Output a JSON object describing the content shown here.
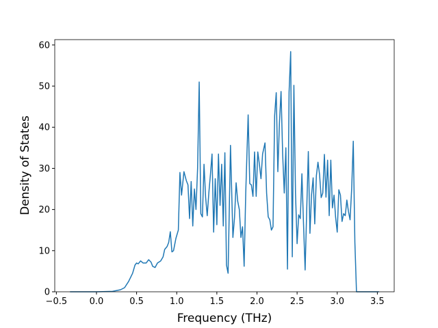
{
  "chart_data": {
    "type": "line",
    "xlabel": "Frequency (THz)",
    "ylabel": "Density of States",
    "xlim": [
      -0.52,
      3.71
    ],
    "ylim": [
      0,
      61.3
    ],
    "xticks": [
      {
        "value": -0.5,
        "label": "−0.5"
      },
      {
        "value": 0,
        "label": "0.0"
      },
      0.5,
      {
        "value": 1,
        "label": "1.0"
      },
      1.5,
      {
        "value": 2,
        "label": "2.0"
      },
      2.5,
      {
        "value": 3,
        "label": "3.0"
      },
      3.5
    ],
    "yticks": [
      0,
      10,
      20,
      30,
      40,
      50,
      60
    ],
    "series": [
      {
        "color": "#1f77b4",
        "x": [
          -0.33,
          0.0,
          0.2,
          0.3,
          0.35,
          0.4,
          0.45,
          0.48,
          0.5,
          0.52,
          0.55,
          0.58,
          0.62,
          0.65,
          0.68,
          0.7,
          0.73,
          0.76,
          0.8,
          0.83,
          0.85,
          0.88,
          0.9,
          0.92,
          0.94,
          0.96,
          0.99,
          1.02,
          1.04,
          1.06,
          1.09,
          1.12,
          1.14,
          1.16,
          1.18,
          1.2,
          1.22,
          1.24,
          1.26,
          1.28,
          1.3,
          1.32,
          1.34,
          1.36,
          1.38,
          1.4,
          1.42,
          1.44,
          1.46,
          1.48,
          1.5,
          1.52,
          1.54,
          1.56,
          1.58,
          1.6,
          1.62,
          1.64,
          1.67,
          1.7,
          1.72,
          1.74,
          1.76,
          1.78,
          1.8,
          1.82,
          1.84,
          1.86,
          1.89,
          1.91,
          1.93,
          1.95,
          1.97,
          1.99,
          2.01,
          2.03,
          2.05,
          2.07,
          2.1,
          2.12,
          2.14,
          2.16,
          2.18,
          2.2,
          2.22,
          2.24,
          2.26,
          2.28,
          2.3,
          2.32,
          2.34,
          2.36,
          2.38,
          2.4,
          2.42,
          2.44,
          2.46,
          2.48,
          2.5,
          2.52,
          2.54,
          2.56,
          2.58,
          2.6,
          2.62,
          2.64,
          2.66,
          2.68,
          2.7,
          2.72,
          2.74,
          2.76,
          2.78,
          2.8,
          2.82,
          2.84,
          2.86,
          2.88,
          2.9,
          2.92,
          2.94,
          2.96,
          2.98,
          3.0,
          3.02,
          3.04,
          3.06,
          3.08,
          3.1,
          3.12,
          3.14,
          3.16,
          3.18,
          3.2,
          3.22,
          3.24,
          3.52
        ],
        "values": [
          0,
          0,
          0.1,
          0.5,
          1,
          2.5,
          4.5,
          6.5,
          7,
          6.8,
          7.5,
          7,
          7,
          7.8,
          7.2,
          6.2,
          5.9,
          7,
          7.5,
          8.5,
          10.3,
          11,
          12,
          14.6,
          9.7,
          10,
          13,
          15,
          29,
          23.5,
          29.2,
          27,
          26,
          17.8,
          26.8,
          16,
          25,
          20,
          30,
          51,
          19,
          18.2,
          31,
          23,
          18.5,
          24,
          28.5,
          33.5,
          14.5,
          27.5,
          16.3,
          33.5,
          21,
          31,
          16,
          33.8,
          6.5,
          4.5,
          35.6,
          13.2,
          18,
          26.5,
          22,
          20,
          13.2,
          15.8,
          6.2,
          24,
          43,
          26.3,
          26,
          23.2,
          34,
          23.2,
          34,
          31,
          27.5,
          33.5,
          36.2,
          24,
          18.2,
          17.5,
          15,
          15.8,
          42.8,
          48.4,
          29.2,
          41,
          48.7,
          33.5,
          24,
          35,
          5.5,
          48.5,
          58.4,
          8.5,
          50.2,
          24,
          11.7,
          18.7,
          17.8,
          28.7,
          16.5,
          5.3,
          20,
          34.1,
          14.2,
          23.6,
          27.7,
          16.5,
          28.2,
          31.5,
          28.5,
          22.9,
          24,
          33.4,
          23,
          32,
          18.5,
          32,
          20.4,
          23.5,
          18.1,
          14.5,
          24.8,
          23.5,
          17.1,
          19,
          18.5,
          22.3,
          19.5,
          17.5,
          25,
          36.6,
          12,
          0,
          0
        ]
      }
    ]
  }
}
